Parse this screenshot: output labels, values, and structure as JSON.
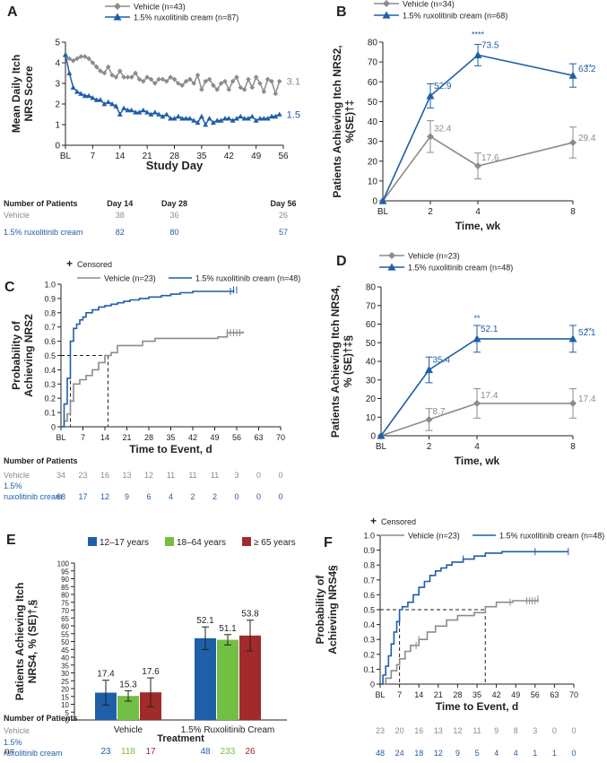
{
  "colors": {
    "vehicle": "#8c8c8c",
    "ruxo": "#1f5fa8",
    "dark": "#222222",
    "g1217": "#1f5fa8",
    "g1864": "#72bf44",
    "g65": "#a12a2a"
  },
  "chart_data": [
    {
      "panel": "A",
      "type": "line",
      "legend": [
        "Vehicle (n=43)",
        "1.5% ruxolitinib cream (n=87)"
      ],
      "ylabel_lines": [
        "Mean Daily Itch",
        "NRS Score"
      ],
      "xlabel": "Study Day",
      "xticks": [
        "BL",
        "7",
        "14",
        "21",
        "28",
        "35",
        "42",
        "49",
        "56"
      ],
      "xlim": [
        0,
        56
      ],
      "ylim": [
        0,
        5
      ],
      "yticks": [
        "0",
        "1",
        "2",
        "3",
        "4",
        "5"
      ],
      "series": [
        {
          "name": "Vehicle",
          "x": [
            0,
            1,
            2,
            3,
            4,
            5,
            6,
            7,
            8,
            9,
            10,
            11,
            12,
            13,
            14,
            15,
            16,
            17,
            18,
            19,
            20,
            21,
            22,
            23,
            24,
            25,
            26,
            27,
            28,
            29,
            30,
            31,
            32,
            33,
            34,
            35,
            36,
            37,
            38,
            39,
            40,
            41,
            42,
            43,
            44,
            45,
            46,
            47,
            48,
            49,
            50,
            51,
            52,
            53,
            54,
            55
          ],
          "y": [
            4.3,
            4.2,
            4.1,
            4.2,
            4.3,
            4.3,
            4.2,
            4.0,
            3.8,
            3.6,
            3.5,
            3.8,
            3.4,
            3.3,
            3.6,
            3.3,
            3.3,
            3.3,
            3.5,
            3.2,
            3.1,
            3.3,
            3.2,
            3.0,
            3.2,
            3.2,
            3.1,
            3.3,
            3.2,
            3.0,
            2.9,
            3.1,
            3.2,
            3.0,
            3.4,
            2.7,
            3.1,
            3.2,
            2.9,
            2.7,
            3.0,
            3.1,
            2.7,
            3.1,
            3.3,
            2.8,
            2.7,
            3.2,
            2.8,
            3.3,
            3.0,
            2.6,
            3.2,
            3.1,
            2.5,
            3.1
          ],
          "end_label": "3.1"
        },
        {
          "name": "1.5% ruxolitinib cream",
          "x": [
            0,
            1,
            2,
            3,
            4,
            5,
            6,
            7,
            8,
            9,
            10,
            11,
            12,
            13,
            14,
            15,
            16,
            17,
            18,
            19,
            20,
            21,
            22,
            23,
            24,
            25,
            26,
            27,
            28,
            29,
            30,
            31,
            32,
            33,
            34,
            35,
            36,
            37,
            38,
            39,
            40,
            41,
            42,
            43,
            44,
            45,
            46,
            47,
            48,
            49,
            50,
            51,
            52,
            53,
            54,
            55
          ],
          "y": [
            4.4,
            3.5,
            2.8,
            2.6,
            2.5,
            2.4,
            2.4,
            2.3,
            2.2,
            2.2,
            2.0,
            2.1,
            2.0,
            1.9,
            1.5,
            1.8,
            1.7,
            1.7,
            1.6,
            1.6,
            1.7,
            1.6,
            1.5,
            1.6,
            1.5,
            1.4,
            1.5,
            1.3,
            1.3,
            1.4,
            1.3,
            1.3,
            1.3,
            1.2,
            1.1,
            1.4,
            1.0,
            1.3,
            1.1,
            1.2,
            1.2,
            1.3,
            1.3,
            1.2,
            1.3,
            1.4,
            1.3,
            1.3,
            1.4,
            1.2,
            1.3,
            1.3,
            1.3,
            1.4,
            1.4,
            1.5
          ],
          "end_label": "1.5"
        }
      ],
      "table": {
        "title": "Number of Patients",
        "headers": [
          "Day 14",
          "Day 28",
          "Day 56"
        ],
        "rows": [
          {
            "label": "Vehicle",
            "values": [
              "38",
              "36",
              "26"
            ]
          },
          {
            "label": "1.5% ruxolitinib cream",
            "values": [
              "82",
              "80",
              "57"
            ]
          }
        ]
      }
    },
    {
      "panel": "B",
      "type": "line",
      "legend": [
        "Vehicle (n=34)",
        "1.5% ruxolitinib cream (n=68)"
      ],
      "ylabel_lines": [
        "Patients Achieving Itch NRS2,",
        "%(SE)†‡"
      ],
      "xlabel": "Time, wk",
      "xticks": [
        "BL",
        "2",
        "4",
        "8"
      ],
      "xvals": [
        0,
        2,
        4,
        8
      ],
      "xlim": [
        0,
        8
      ],
      "ylim": [
        0,
        80
      ],
      "yticks": [
        "0",
        "10",
        "20",
        "30",
        "40",
        "50",
        "60",
        "70",
        "80"
      ],
      "series": [
        {
          "name": "Vehicle",
          "x": [
            0,
            2,
            4,
            8
          ],
          "y": [
            0,
            32.4,
            17.6,
            29.4
          ],
          "se": [
            0,
            8.0,
            6.5,
            7.8
          ],
          "labels": [
            "",
            "32.4",
            "17.6",
            "29.4"
          ]
        },
        {
          "name": "1.5% ruxolitinib cream",
          "x": [
            0,
            2,
            4,
            8
          ],
          "y": [
            0,
            52.9,
            73.5,
            63.2
          ],
          "se": [
            0,
            6.1,
            5.4,
            5.9
          ],
          "labels": [
            "",
            "52.9",
            "73.5",
            "63.2"
          ],
          "sig": [
            "",
            "",
            "****",
            "**"
          ]
        }
      ]
    },
    {
      "panel": "C",
      "type": "line",
      "censor_label": "Censored",
      "legend": [
        "Vehicle (n=23)",
        "1.5% ruxolitinib cream (n=48)"
      ],
      "ylabel_lines": [
        "Probability of",
        "Achieving NRS2"
      ],
      "xlabel": "Time to Event, d",
      "xticks": [
        "BL",
        "7",
        "14",
        "21",
        "28",
        "35",
        "42",
        "49",
        "56",
        "63",
        "70"
      ],
      "xlim": [
        0,
        70
      ],
      "ylim": [
        0,
        1.0
      ],
      "yticks": [
        "0",
        "0.1",
        "0.2",
        "0.3",
        "0.4",
        "0.5",
        "0.6",
        "0.7",
        "0.8",
        "0.9",
        "1.0"
      ],
      "median_lines": [
        3,
        15
      ],
      "series": [
        {
          "name": "Vehicle",
          "x": [
            0,
            1,
            2,
            3,
            4,
            6,
            8,
            10,
            12,
            14,
            16,
            18,
            22,
            26,
            30,
            34,
            38,
            44,
            50,
            53,
            58
          ],
          "y": [
            0,
            0.04,
            0.09,
            0.18,
            0.3,
            0.33,
            0.36,
            0.4,
            0.45,
            0.5,
            0.52,
            0.57,
            0.57,
            0.6,
            0.62,
            0.62,
            0.62,
            0.62,
            0.63,
            0.66,
            0.67
          ],
          "censor_x": [
            53,
            54,
            55,
            56,
            57
          ]
        },
        {
          "name": "1.5% ruxolitinib cream",
          "x": [
            0,
            1,
            2,
            3,
            4,
            5,
            6,
            7,
            8,
            10,
            12,
            14,
            16,
            18,
            20,
            22,
            25,
            28,
            32,
            35,
            38,
            42,
            48,
            55
          ],
          "y": [
            0,
            0.16,
            0.34,
            0.6,
            0.69,
            0.72,
            0.75,
            0.77,
            0.8,
            0.82,
            0.84,
            0.85,
            0.86,
            0.87,
            0.88,
            0.89,
            0.9,
            0.91,
            0.92,
            0.93,
            0.94,
            0.95,
            0.95,
            0.96
          ],
          "censor_x": [
            54,
            55,
            56
          ]
        }
      ],
      "table": {
        "title": "Number of Patients",
        "rows": [
          {
            "label": "Vehicle",
            "values": [
              "34",
              "23",
              "16",
              "13",
              "12",
              "11",
              "11",
              "11",
              "3",
              "0",
              "0"
            ]
          },
          {
            "label_lines": [
              "1.5%",
              "ruxolitinib cream"
            ],
            "values": [
              "68",
              "17",
              "12",
              "9",
              "6",
              "4",
              "2",
              "2",
              "0",
              "0",
              "0"
            ]
          }
        ]
      }
    },
    {
      "panel": "D",
      "type": "line",
      "legend": [
        "Vehicle (n=23)",
        "1.5% ruxolitinib cream (n=48)"
      ],
      "ylabel_lines": [
        "Patients Achieving Itch NRS4,",
        "% (SE)†‡§"
      ],
      "xlabel": "Time, wk",
      "xticks": [
        "BL",
        "2",
        "4",
        "8"
      ],
      "xvals": [
        0,
        2,
        4,
        8
      ],
      "xlim": [
        0,
        8
      ],
      "ylim": [
        0,
        80
      ],
      "yticks": [
        "0",
        "10",
        "20",
        "30",
        "40",
        "50",
        "60",
        "70",
        "80"
      ],
      "series": [
        {
          "name": "Vehicle",
          "x": [
            0,
            2,
            4,
            8
          ],
          "y": [
            0,
            8.7,
            17.4,
            17.4
          ],
          "se": [
            0,
            5.9,
            7.9,
            7.9
          ],
          "labels": [
            "",
            "8.7",
            "17.4",
            "17.4"
          ]
        },
        {
          "name": "1.5% ruxolitinib cream",
          "x": [
            0,
            2,
            4,
            8
          ],
          "y": [
            0,
            35.4,
            52.1,
            52.1
          ],
          "se": [
            0,
            6.9,
            7.2,
            7.2
          ],
          "labels": [
            "",
            "35.4",
            "52.1",
            "52.1"
          ],
          "sig": [
            "",
            "",
            "**",
            "**"
          ]
        }
      ]
    },
    {
      "panel": "E",
      "type": "bar",
      "legend": [
        "12–17 years",
        "18–64 years",
        "≥ 65 years"
      ],
      "ylabel_lines": [
        "Patients  Achieving Itch",
        "NRS4, % (SE)†,§"
      ],
      "xlabel": "Treatment",
      "categories": [
        "Vehicle",
        "1.5% Ruxolitinib Cream"
      ],
      "ylim": [
        0,
        100
      ],
      "yticks": [
        "0",
        "5",
        "10",
        "15",
        "20",
        "25",
        "30",
        "35",
        "40",
        "45",
        "50",
        "55",
        "60",
        "65",
        "70",
        "75",
        "80",
        "85",
        "90",
        "95",
        "100"
      ],
      "series": [
        {
          "name": "12–17 years",
          "values": [
            17.4,
            52.1
          ],
          "se": [
            7.9,
            7.2
          ],
          "labels": [
            "17.4",
            "52.1"
          ],
          "n": [
            "23",
            "48"
          ]
        },
        {
          "name": "18–64 years",
          "values": [
            15.3,
            51.1
          ],
          "se": [
            3.3,
            3.3
          ],
          "labels": [
            "15.3",
            "51.1"
          ],
          "n": [
            "118",
            "233"
          ]
        },
        {
          "name": "≥ 65 years",
          "values": [
            17.6,
            53.8
          ],
          "se": [
            9.2,
            9.8
          ],
          "labels": [
            "17.6",
            "53.8"
          ],
          "n": [
            "17",
            "26"
          ]
        }
      ],
      "n_label": "n="
    },
    {
      "panel": "F",
      "type": "line",
      "censor_label": "Censored",
      "legend": [
        "Vehicle (n=23)",
        "1.5% ruxolitinib cream (n=48)"
      ],
      "ylabel_lines": [
        "Probability of",
        "Achieving NRS4§"
      ],
      "xlabel": "Time to Event, d",
      "xticks": [
        "BL",
        "7",
        "14",
        "21",
        "28",
        "35",
        "42",
        "49",
        "56",
        "63",
        "70"
      ],
      "xlim": [
        0,
        70
      ],
      "ylim": [
        0,
        1.0
      ],
      "yticks": [
        "0",
        "0.1",
        "0.2",
        "0.3",
        "0.4",
        "0.5",
        "0.6",
        "0.7",
        "0.8",
        "0.9",
        "1.0"
      ],
      "median_lines": [
        7,
        38
      ],
      "series": [
        {
          "name": "Vehicle",
          "x": [
            0,
            2,
            4,
            6,
            7,
            9,
            11,
            14,
            17,
            20,
            24,
            28,
            34,
            38,
            42,
            48,
            53,
            57
          ],
          "y": [
            0,
            0.04,
            0.09,
            0.13,
            0.17,
            0.22,
            0.26,
            0.3,
            0.35,
            0.39,
            0.43,
            0.46,
            0.48,
            0.52,
            0.55,
            0.56,
            0.56,
            0.57
          ],
          "censor_x": [
            13,
            14,
            47,
            53,
            54,
            55,
            56,
            57
          ]
        },
        {
          "name": "1.5% ruxolitinib cream",
          "x": [
            0,
            1,
            2,
            3,
            4,
            5,
            6,
            7,
            8,
            10,
            12,
            14,
            16,
            18,
            20,
            22,
            24,
            26,
            30,
            34,
            38,
            44,
            56,
            68
          ],
          "y": [
            0,
            0.06,
            0.12,
            0.19,
            0.27,
            0.35,
            0.42,
            0.5,
            0.52,
            0.55,
            0.6,
            0.65,
            0.69,
            0.73,
            0.76,
            0.78,
            0.8,
            0.82,
            0.84,
            0.86,
            0.88,
            0.89,
            0.89,
            0.89
          ],
          "censor_x": [
            30,
            56,
            68
          ]
        }
      ],
      "table": {
        "title": "Number of Patients",
        "rows": [
          {
            "label": "Vehicle",
            "values": [
              "23",
              "20",
              "16",
              "13",
              "12",
              "11",
              "9",
              "8",
              "3",
              "0",
              "0"
            ]
          },
          {
            "label_lines": [
              "1.5%",
              "ruxolitinib cream"
            ],
            "values": [
              "48",
              "24",
              "18",
              "12",
              "9",
              "5",
              "4",
              "4",
              "1",
              "1",
              "0"
            ]
          }
        ]
      }
    }
  ]
}
